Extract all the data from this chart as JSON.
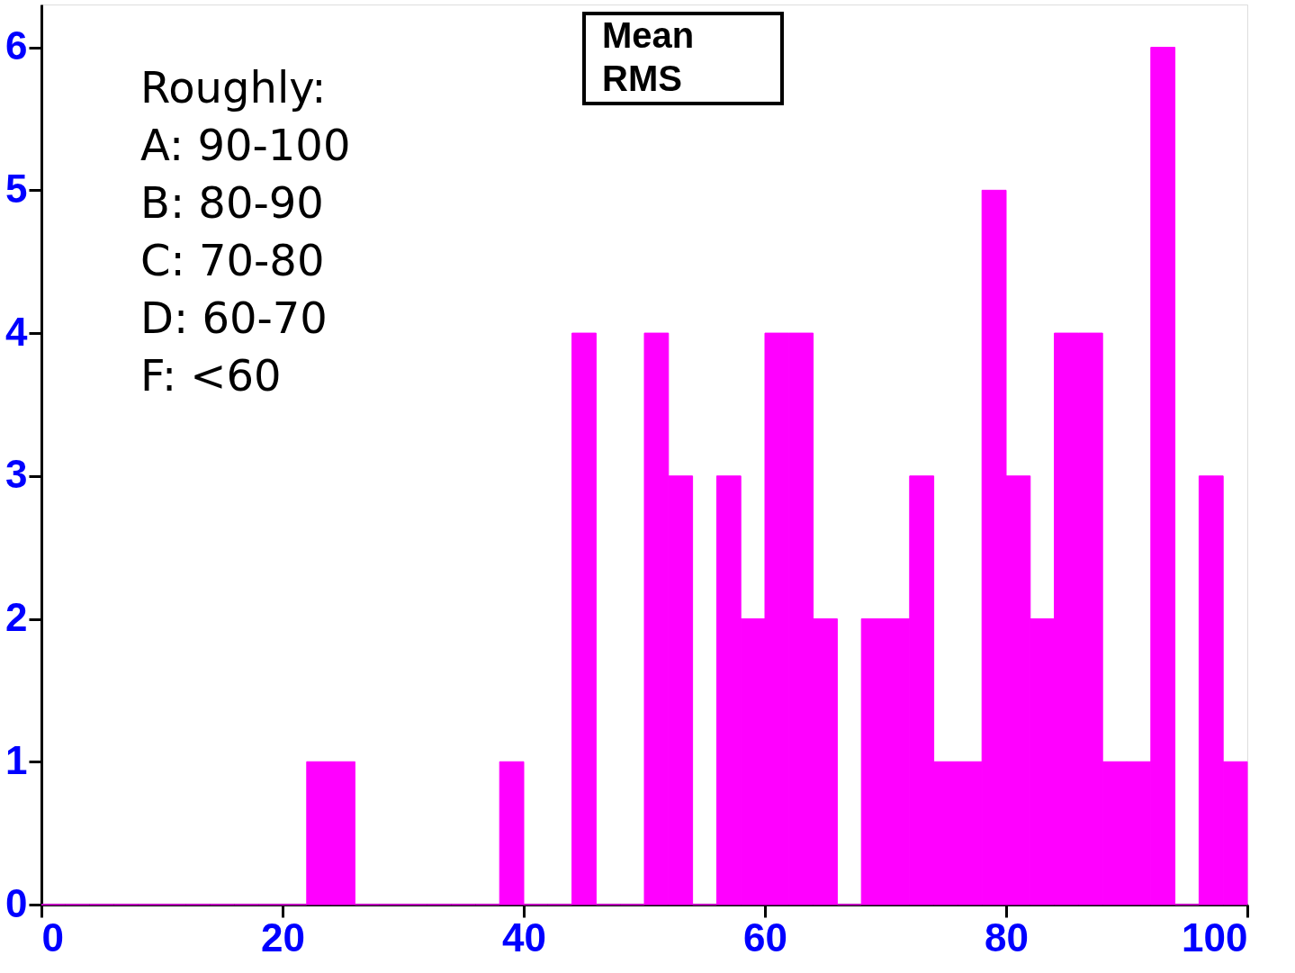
{
  "chart_data": {
    "type": "histogram",
    "bins": [
      0,
      2,
      4,
      6,
      8,
      10,
      12,
      14,
      16,
      18,
      20,
      22,
      24,
      26,
      28,
      30,
      32,
      34,
      36,
      38,
      40,
      42,
      44,
      46,
      48,
      50,
      52,
      54,
      56,
      58,
      60,
      62,
      64,
      66,
      68,
      70,
      72,
      74,
      76,
      78,
      80,
      82,
      84,
      86,
      88,
      90,
      92,
      94,
      96,
      98,
      100
    ],
    "values": [
      0,
      0,
      0,
      0,
      0,
      0,
      0,
      0,
      0,
      0,
      0,
      1,
      1,
      0,
      0,
      0,
      0,
      0,
      0,
      1,
      0,
      0,
      4,
      0,
      0,
      4,
      3,
      0,
      3,
      2,
      4,
      4,
      2,
      0,
      2,
      2,
      3,
      1,
      1,
      5,
      3,
      2,
      4,
      4,
      1,
      1,
      6,
      0,
      3,
      1
    ],
    "color": "#ff00ff",
    "xlim": [
      0,
      100
    ],
    "xticks": [
      0,
      20,
      40,
      60,
      80,
      100
    ],
    "ylim": [
      0,
      6.3
    ],
    "yticks": [
      0,
      1,
      2,
      3,
      4,
      5,
      6
    ],
    "grid": false,
    "annotations": [
      "Roughly:",
      "A: 90-100",
      "B: 80-90",
      "C: 70-80",
      "D: 60-70",
      "F: <60",
      "Mean",
      "RMS"
    ]
  }
}
